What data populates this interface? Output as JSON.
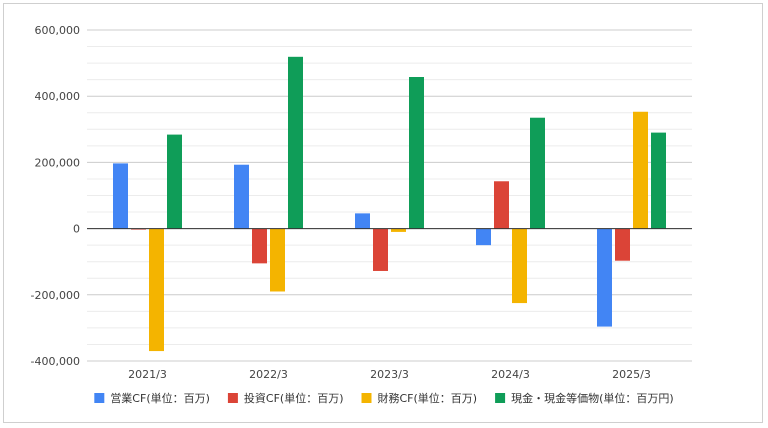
{
  "chart_data": {
    "type": "bar",
    "title": "",
    "xlabel": "",
    "ylabel": "",
    "categories": [
      "2021/3",
      "2022/3",
      "2023/3",
      "2024/3",
      "2025/3"
    ],
    "ylim": [
      -400000,
      600000
    ],
    "yticks": [
      600000,
      400000,
      200000,
      0,
      -200000,
      -400000
    ],
    "ytick_labels": [
      "600,000",
      "400,000",
      "200,000",
      "0",
      "-200,000",
      "-400,000"
    ],
    "grid": true,
    "legend_position": "bottom",
    "series": [
      {
        "name": "営業CF(単位：百万)",
        "color": "#4285F4",
        "values": [
          197000,
          193000,
          46000,
          -50000,
          -296000
        ]
      },
      {
        "name": "投資CF(単位：百万)",
        "color": "#DB4437",
        "values": [
          -3000,
          -105000,
          -128000,
          143000,
          -97000
        ]
      },
      {
        "name": "財務CF(単位：百万)",
        "color": "#F4B400",
        "values": [
          -370000,
          -190000,
          -10000,
          -225000,
          353000
        ]
      },
      {
        "name": "現金・現金等価物(単位：百万円)",
        "color": "#0F9D58",
        "values": [
          284000,
          519000,
          458000,
          335000,
          290000
        ]
      }
    ]
  }
}
